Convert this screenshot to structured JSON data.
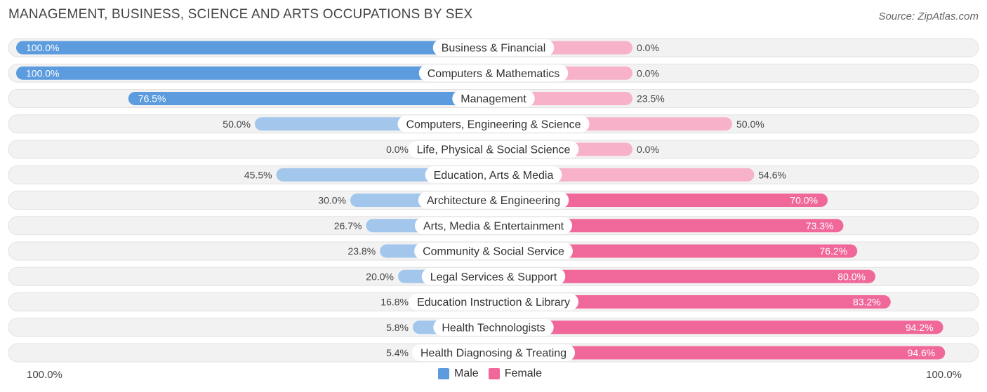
{
  "header": {
    "title": "MANAGEMENT, BUSINESS, SCIENCE AND ARTS OCCUPATIONS BY SEX",
    "source": "Source: ZipAtlas.com"
  },
  "colors": {
    "male_strong": "#5b9bde",
    "male_light": "#a3c6ec",
    "female_strong": "#f0689a",
    "female_light": "#f7b1c9",
    "track": "#efefef"
  },
  "legend": {
    "male_label": "Male",
    "female_label": "Female"
  },
  "axis": {
    "left_label": "100.0%",
    "right_label": "100.0%"
  },
  "chart_data": {
    "type": "bar",
    "orientation": "horizontal-diverging",
    "title": "MANAGEMENT, BUSINESS, SCIENCE AND ARTS OCCUPATIONS BY SEX",
    "xlim": [
      -100,
      100
    ],
    "categories": [
      "Business & Financial",
      "Computers & Mathematics",
      "Management",
      "Computers, Engineering & Science",
      "Life, Physical & Social Science",
      "Education, Arts & Media",
      "Architecture & Engineering",
      "Arts, Media & Entertainment",
      "Community & Social Service",
      "Legal Services & Support",
      "Education Instruction & Library",
      "Health Technologists",
      "Health Diagnosing & Treating"
    ],
    "series": [
      {
        "name": "Male",
        "values": [
          100.0,
          100.0,
          76.5,
          50.0,
          0.0,
          45.5,
          30.0,
          26.7,
          23.8,
          20.0,
          16.8,
          5.8,
          5.4
        ],
        "labels": [
          "100.0%",
          "100.0%",
          "76.5%",
          "50.0%",
          "0.0%",
          "45.5%",
          "30.0%",
          "26.7%",
          "23.8%",
          "20.0%",
          "16.8%",
          "5.8%",
          "5.4%"
        ]
      },
      {
        "name": "Female",
        "values": [
          0.0,
          0.0,
          23.5,
          50.0,
          0.0,
          54.6,
          70.0,
          73.3,
          76.2,
          80.0,
          83.2,
          94.2,
          94.6
        ],
        "labels": [
          "0.0%",
          "0.0%",
          "23.5%",
          "50.0%",
          "0.0%",
          "54.6%",
          "70.0%",
          "73.3%",
          "76.2%",
          "80.0%",
          "83.2%",
          "94.2%",
          "94.6%"
        ]
      }
    ]
  }
}
